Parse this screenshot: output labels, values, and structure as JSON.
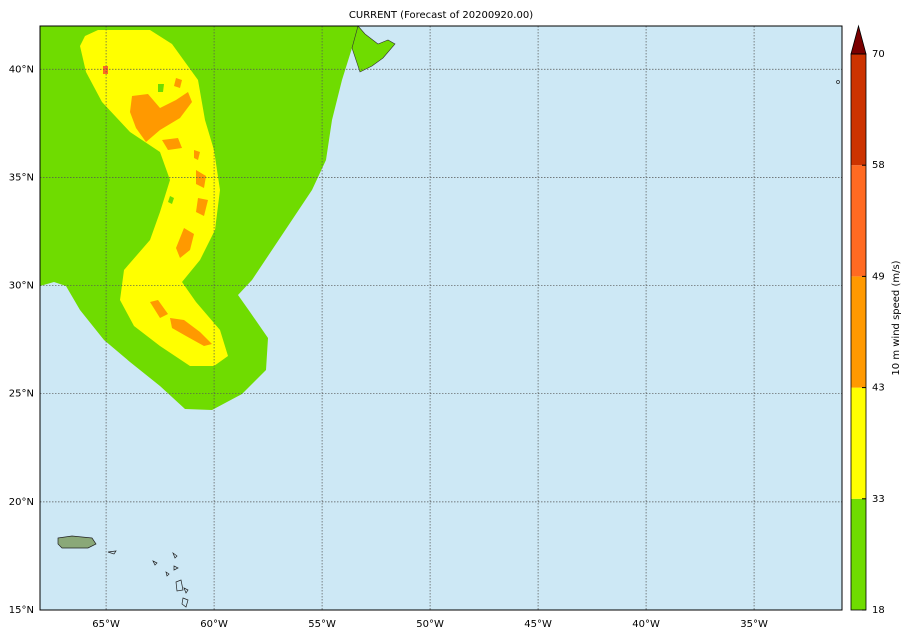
{
  "title": "CURRENT (Forecast of 20200920.00)",
  "lon_range": [
    -68.06,
    -30.93
  ],
  "lat_range": [
    15,
    42
  ],
  "lon_ticks": [
    {
      "value": -65,
      "label": "65°W"
    },
    {
      "value": -60,
      "label": "60°W"
    },
    {
      "value": -55,
      "label": "55°W"
    },
    {
      "value": -50,
      "label": "50°W"
    },
    {
      "value": -45,
      "label": "45°W"
    },
    {
      "value": -40,
      "label": "40°W"
    },
    {
      "value": -35,
      "label": "35°W"
    }
  ],
  "lat_ticks": [
    {
      "value": 15,
      "label": "15°N"
    },
    {
      "value": 20,
      "label": "20°N"
    },
    {
      "value": 25,
      "label": "25°N"
    },
    {
      "value": 30,
      "label": "30°N"
    },
    {
      "value": 35,
      "label": "35°N"
    },
    {
      "value": 40,
      "label": "40°N"
    }
  ],
  "colorbar": {
    "label": "10 m wind speed (m/s)",
    "levels": [
      18,
      33,
      43,
      49,
      58,
      70
    ],
    "colors": [
      "#6fdc00",
      "#ffff00",
      "#ff9900",
      "#ff6a22",
      "#cc3300"
    ],
    "extend_color": "#7a0000"
  }
}
